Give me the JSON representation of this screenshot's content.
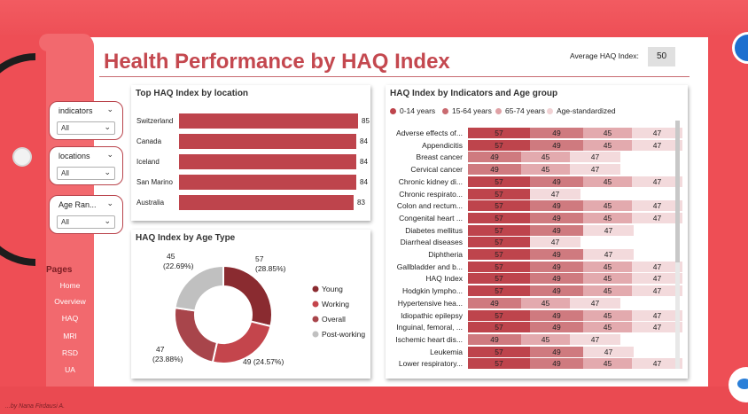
{
  "header": {
    "title": "Health Performance by HAQ Index",
    "avg_label": "Average HAQ Index:",
    "avg_value": "50"
  },
  "filters": [
    {
      "label": "indicators",
      "value": "All"
    },
    {
      "label": "locations",
      "value": "All"
    },
    {
      "label": "Age Ran...",
      "value": "All"
    }
  ],
  "nav": {
    "title": "Pages",
    "items": [
      "Home",
      "Overview",
      "HAQ",
      "MRI",
      "RSD",
      "UA"
    ]
  },
  "author": "...by Nana Firdausi A.",
  "top_locations": {
    "title": "Top HAQ Index by location",
    "rows": [
      {
        "label": "Switzerland",
        "value": 85
      },
      {
        "label": "Canada",
        "value": 84
      },
      {
        "label": "Iceland",
        "value": 84
      },
      {
        "label": "San Marino",
        "value": 84
      },
      {
        "label": "Australia",
        "value": 83
      }
    ]
  },
  "age_type": {
    "title": "HAQ Index by Age Type",
    "legend": [
      "Young",
      "Working",
      "Overall",
      "Post-working"
    ],
    "colors": [
      "#8a2b30",
      "#c4454c",
      "#a8454b",
      "#c0c0c0"
    ],
    "slices": [
      {
        "name": "Young",
        "value": 57,
        "label": "57",
        "pct": "(28.85%)"
      },
      {
        "name": "Working",
        "value": 49,
        "label": "49 (24.57%)",
        "pct": ""
      },
      {
        "name": "Overall",
        "value": 47,
        "label": "47",
        "pct": "(23.88%)"
      },
      {
        "name": "Post-working",
        "value": 45,
        "label": "45",
        "pct": "(22.69%)"
      }
    ]
  },
  "indicators": {
    "title": "HAQ Index by Indicators and Age group",
    "legend": [
      {
        "label": "0-14 years",
        "color": "#be444c"
      },
      {
        "label": "15-64 years",
        "color": "#c96a70"
      },
      {
        "label": "65-74 years",
        "color": "#dfa1a5"
      },
      {
        "label": "Age-standardized",
        "color": "#f1d2d4"
      }
    ],
    "seg_colors": [
      "#be444c",
      "#cf7a7f",
      "#e3aaae",
      "#f3dadc"
    ],
    "rows": [
      {
        "label": "Adverse effects of...",
        "values": [
          57,
          49,
          45,
          47
        ]
      },
      {
        "label": "Appendicitis",
        "values": [
          57,
          49,
          45,
          47
        ]
      },
      {
        "label": "Breast cancer",
        "values": [
          49,
          45,
          47
        ]
      },
      {
        "label": "Cervical cancer",
        "values": [
          49,
          45,
          47
        ]
      },
      {
        "label": "Chronic kidney di...",
        "values": [
          57,
          49,
          45,
          47
        ]
      },
      {
        "label": "Chronic respirato...",
        "values": [
          57,
          47
        ]
      },
      {
        "label": "Colon and rectum...",
        "values": [
          57,
          49,
          45,
          47
        ]
      },
      {
        "label": "Congenital heart ...",
        "values": [
          57,
          49,
          45,
          47
        ]
      },
      {
        "label": "Diabetes mellitus",
        "values": [
          57,
          49,
          47
        ]
      },
      {
        "label": "Diarrheal diseases",
        "values": [
          57,
          47
        ]
      },
      {
        "label": "Diphtheria",
        "values": [
          57,
          49,
          47
        ]
      },
      {
        "label": "Gallbladder and b...",
        "values": [
          57,
          49,
          45,
          47
        ]
      },
      {
        "label": "HAQ Index",
        "values": [
          57,
          49,
          45,
          47
        ]
      },
      {
        "label": "Hodgkin lympho...",
        "values": [
          57,
          49,
          45,
          47
        ]
      },
      {
        "label": "Hypertensive hea...",
        "values": [
          49,
          45,
          47
        ]
      },
      {
        "label": "Idiopathic epilepsy",
        "values": [
          57,
          49,
          45,
          47
        ]
      },
      {
        "label": "Inguinal, femoral, ...",
        "values": [
          57,
          49,
          45,
          47
        ]
      },
      {
        "label": "Ischemic heart dis...",
        "values": [
          49,
          45,
          47
        ]
      },
      {
        "label": "Leukemia",
        "values": [
          57,
          49,
          47
        ]
      },
      {
        "label": "Lower respiratory...",
        "values": [
          57,
          49,
          45,
          47
        ]
      }
    ]
  }
}
